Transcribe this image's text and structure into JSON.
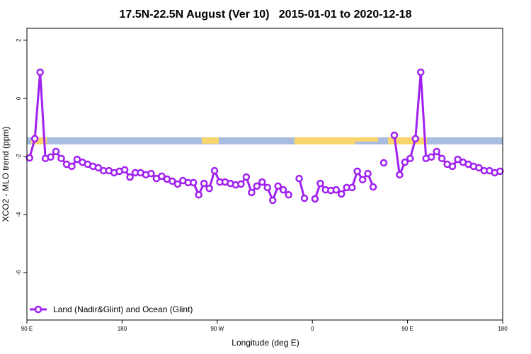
{
  "chart_data": {
    "type": "line",
    "title": "17.5N-22.5N August (Ver 10)   2015-01-01 to 2020-12-18",
    "x_label": "Longitude (deg E)",
    "y_label": "XCO2 - MLO trend (ppm)",
    "xlim": [
      90,
      540
    ],
    "ylim": [
      -7.63,
      2.41
    ],
    "xticks": [
      {
        "value": 90,
        "label": "90 E"
      },
      180,
      {
        "value": 270,
        "label": "90 W"
      },
      {
        "value": 360,
        "label": "0"
      },
      {
        "value": 450,
        "label": "90 E"
      },
      {
        "value": 540,
        "label": "180"
      }
    ],
    "yticks": [
      2,
      0,
      -2,
      -4,
      -6
    ],
    "legend": "bottom-left",
    "x": [
      92.5,
      97.5,
      102.5,
      107.5,
      112.5,
      117.5,
      122.5,
      127.5,
      132.5,
      137.5,
      142.5,
      147.5,
      152.5,
      157.5,
      162.5,
      167.5,
      172.5,
      177.5,
      182.5,
      187.5,
      192.5,
      197.5,
      202.5,
      207.5,
      212.5,
      217.5,
      222.5,
      227.5,
      232.5,
      237.5,
      242.5,
      247.5,
      252.5,
      257.5,
      262.5,
      267.5,
      272.5,
      277.5,
      282.5,
      287.5,
      292.5,
      297.5,
      302.5,
      307.5,
      312.5,
      317.5,
      322.5,
      327.5,
      332.5,
      337.5,
      342.5,
      347.5,
      352.5,
      357.5,
      362.5,
      367.5,
      372.5,
      377.5,
      382.5,
      387.5,
      392.5,
      397.5,
      402.5,
      407.5,
      412.5,
      417.5,
      422.5,
      427.5,
      432.5,
      437.5,
      442.5,
      447.5,
      452.5,
      457.5,
      462.5,
      467.5,
      472.5,
      477.5,
      482.5,
      487.5,
      492.5,
      497.5,
      502.5,
      507.5,
      512.5,
      517.5,
      522.5,
      527.5,
      532.5,
      537.5
    ],
    "series": [
      {
        "name": "Land (Nadir&Glint) and Ocean (Glint)",
        "color": "#a020f0",
        "values": [
          -2.05,
          -1.39,
          0.9,
          -2.07,
          -2.02,
          -1.83,
          -2.07,
          -2.27,
          -2.34,
          -2.1,
          -2.2,
          -2.27,
          -2.34,
          -2.39,
          -2.49,
          -2.49,
          -2.56,
          -2.51,
          -2.46,
          -2.71,
          -2.56,
          -2.56,
          -2.63,
          -2.59,
          -2.76,
          -2.68,
          -2.78,
          -2.85,
          -2.95,
          -2.83,
          -2.9,
          -2.9,
          -3.32,
          -2.93,
          -3.1,
          -2.49,
          -2.88,
          -2.88,
          -2.93,
          -2.98,
          -2.95,
          -2.71,
          -3.24,
          -3.02,
          -2.88,
          -3.07,
          -3.51,
          -3.02,
          -3.15,
          -3.32,
          null,
          -2.76,
          -3.44,
          null,
          -3.46,
          -2.93,
          -3.15,
          -3.17,
          -3.15,
          -3.29,
          -3.07,
          -3.07,
          -2.51,
          -2.8,
          -2.59,
          -3.05,
          null,
          -2.22,
          null,
          -1.27,
          -2.63,
          -2.2,
          -2.07,
          -1.39,
          0.9,
          -2.07,
          -2.02,
          -1.83,
          -2.07,
          -2.27,
          -2.34,
          -2.1,
          -2.2,
          -2.27,
          -2.34,
          -2.39,
          -2.49,
          -2.49,
          -2.56,
          -2.51
        ]
      }
    ]
  }
}
